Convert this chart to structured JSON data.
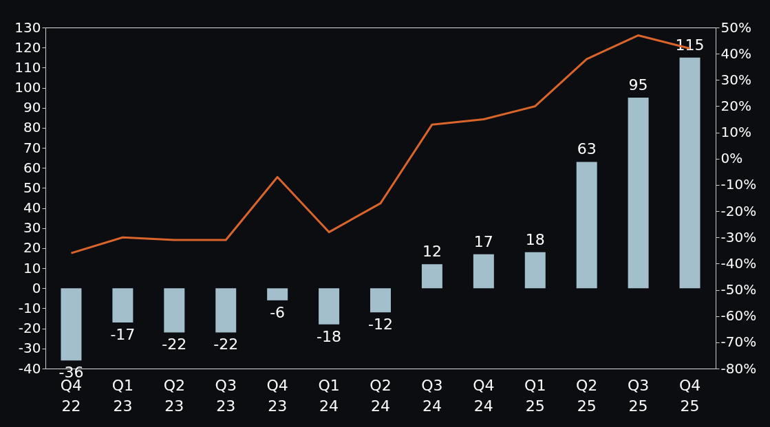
{
  "chart_data": {
    "type": "bar",
    "categories": [
      "Q4 22",
      "Q1 23",
      "Q2 23",
      "Q3 23",
      "Q4 23",
      "Q1 24",
      "Q2 24",
      "Q3 24",
      "Q4 24",
      "Q1 25",
      "Q2 25",
      "Q3 25",
      "Q4 25"
    ],
    "series": [
      {
        "color": "#a3bfcb",
        "values": [
          -36,
          -17,
          -22,
          -22,
          -6,
          -18,
          -12,
          12,
          17,
          18,
          63,
          95,
          115
        ],
        "value_labels": [
          "-36",
          "-17",
          "-22",
          "-22",
          "-6",
          "-18",
          "-12",
          "12",
          "17",
          "18",
          "63",
          "95",
          "115"
        ]
      },
      {
        "type": "line",
        "axis": "y2",
        "color": "#d9652b",
        "values": [
          -36,
          -30,
          -31,
          -31,
          -7,
          -28,
          -17,
          13,
          15,
          20,
          38,
          47,
          42
        ]
      }
    ],
    "ylim": [
      -40,
      130
    ],
    "yticks": [
      -40,
      -30,
      -20,
      -10,
      0,
      10,
      20,
      30,
      40,
      50,
      60,
      70,
      80,
      90,
      100,
      110,
      120,
      130
    ],
    "y2lim": [
      -80,
      50
    ],
    "y2ticks": [
      {
        "value": -80,
        "label": "-80%"
      },
      {
        "value": -70,
        "label": "-70%"
      },
      {
        "value": -60,
        "label": "-60%"
      },
      {
        "value": -50,
        "label": "-50%"
      },
      {
        "value": -40,
        "label": "-40%"
      },
      {
        "value": -30,
        "label": "-30%"
      },
      {
        "value": -20,
        "label": "-20%"
      },
      {
        "value": -10,
        "label": "-10%"
      },
      {
        "value": 0,
        "label": "0%"
      },
      {
        "value": 10,
        "label": "10%"
      },
      {
        "value": 20,
        "label": "20%"
      },
      {
        "value": 30,
        "label": "30%"
      },
      {
        "value": 40,
        "label": "40%"
      },
      {
        "value": 50,
        "label": "50%"
      }
    ],
    "grid": false,
    "legend": false,
    "marker": "none",
    "line_style": "solid"
  }
}
